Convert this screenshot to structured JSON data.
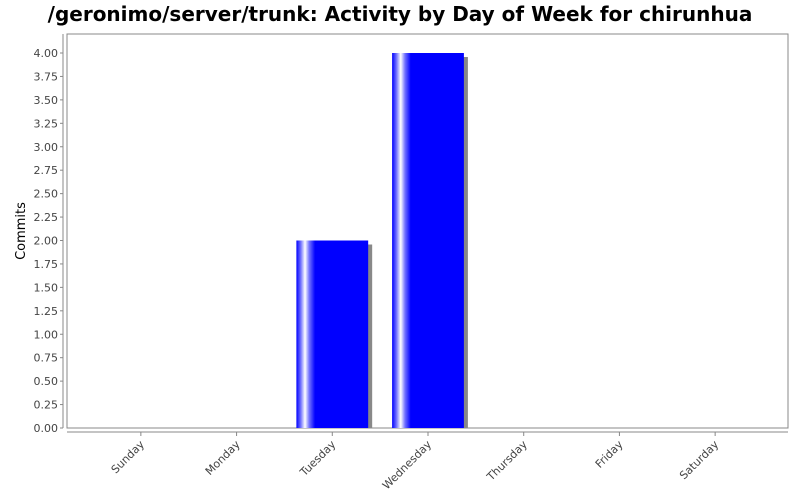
{
  "chart_data": {
    "type": "bar",
    "title": "/geronimo/server/trunk: Activity by Day of Week for chirunhua",
    "xlabel": "",
    "ylabel": "Commits",
    "categories": [
      "Sunday",
      "Monday",
      "Tuesday",
      "Wednesday",
      "Thursday",
      "Friday",
      "Saturday"
    ],
    "values": [
      0,
      0,
      2,
      4,
      0,
      0,
      0
    ],
    "ylim": [
      0,
      4
    ],
    "yticks": [
      "0.00",
      "0.25",
      "0.50",
      "0.75",
      "1.00",
      "1.25",
      "1.50",
      "1.75",
      "2.00",
      "2.25",
      "2.50",
      "2.75",
      "3.00",
      "3.25",
      "3.50",
      "3.75",
      "4.00"
    ],
    "grid": false,
    "legend": "none",
    "colors": {
      "bar": "#0000ff",
      "plot_background": "#ffffff",
      "plot_border": "#888888",
      "shadow": "#888888"
    }
  }
}
